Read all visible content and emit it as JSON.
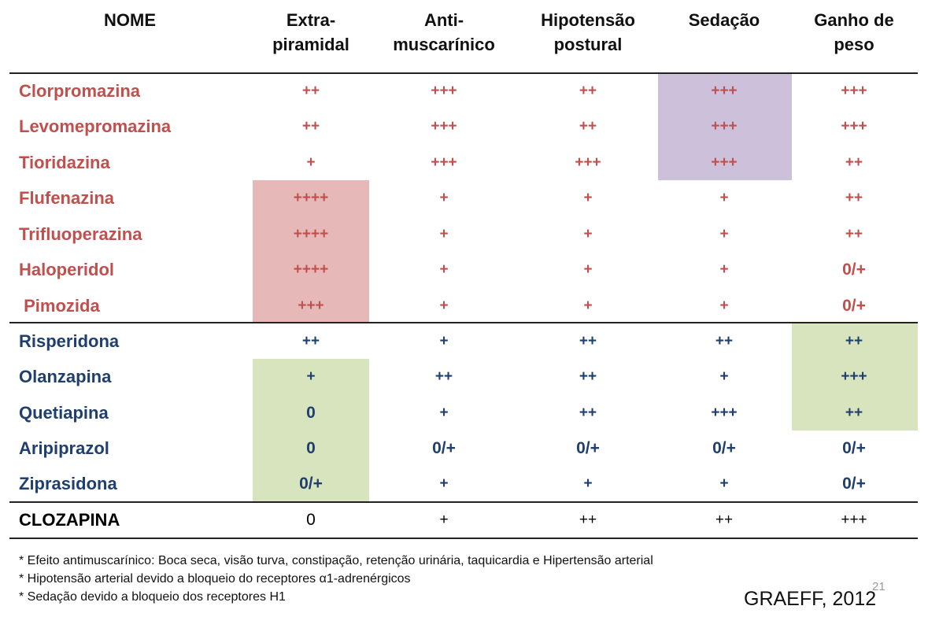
{
  "headers": {
    "nome": [
      "NOME"
    ],
    "extrapiramidal": [
      "Extra-",
      "piramidal"
    ],
    "antimuscarinico": [
      "Anti-",
      "muscarínico"
    ],
    "hipotensao": [
      "Hipotensão",
      "postural"
    ],
    "sedacao": [
      "Sedação"
    ],
    "ganho": [
      "Ganho de",
      "peso"
    ]
  },
  "typical": [
    {
      "name": "Clorpromazina",
      "values": [
        "++",
        "+++",
        "++",
        "+++",
        "+++"
      ]
    },
    {
      "name": "Levomepromazina",
      "values": [
        "++",
        "+++",
        "++",
        "+++",
        "+++"
      ]
    },
    {
      "name": "Tioridazina",
      "values": [
        "+",
        "+++",
        "+++",
        "+++",
        "++"
      ]
    },
    {
      "name": "Flufenazina",
      "values": [
        "++++",
        "+",
        "+",
        "+",
        "++"
      ]
    },
    {
      "name": "Trifluoperazina",
      "values": [
        "++++",
        "+",
        "+",
        "+",
        "++"
      ]
    },
    {
      "name": "Haloperidol",
      "values": [
        "++++",
        "+",
        "+",
        "+",
        "0/+"
      ]
    },
    {
      "name": " Pimozida",
      "values": [
        "+++",
        "+",
        "+",
        "+",
        "0/+"
      ]
    }
  ],
  "atypical": [
    {
      "name": "Risperidona",
      "values": [
        "++",
        "+",
        "++",
        "++",
        "++"
      ]
    },
    {
      "name": "Olanzapina",
      "values": [
        "+",
        "++",
        "++",
        "+",
        "+++"
      ]
    },
    {
      "name": "Quetiapina",
      "values": [
        "0",
        "+",
        "++",
        "+++",
        "++"
      ]
    },
    {
      "name": "Aripiprazol",
      "values": [
        "0",
        "0/+",
        "0/+",
        "0/+",
        "0/+"
      ]
    },
    {
      "name": "Ziprasidona",
      "values": [
        "0/+",
        "+",
        "+",
        "+",
        "0/+"
      ]
    }
  ],
  "clozapina": {
    "name": "CLOZAPINA",
    "values": [
      "0",
      "+",
      "++",
      "++",
      "+++"
    ]
  },
  "notes": [
    "* Efeito antimuscarínico: Boca seca, visão turva, constipação, retenção urinária, taquicardia e Hipertensão arterial",
    "* Hipotensão arterial devido  a bloqueio do receptores α1-adrenérgicos",
    "* Sedação devido a bloqueio dos receptores H1"
  ],
  "reference": "GRAEFF, 2012",
  "page_number": "21",
  "colors": {
    "typical_text": "#c0504d",
    "atypical_text": "#1f3f6e",
    "highlight_pink": "#e6b8b7",
    "highlight_purple": "#ccc0da",
    "highlight_green": "#d7e4bd"
  }
}
